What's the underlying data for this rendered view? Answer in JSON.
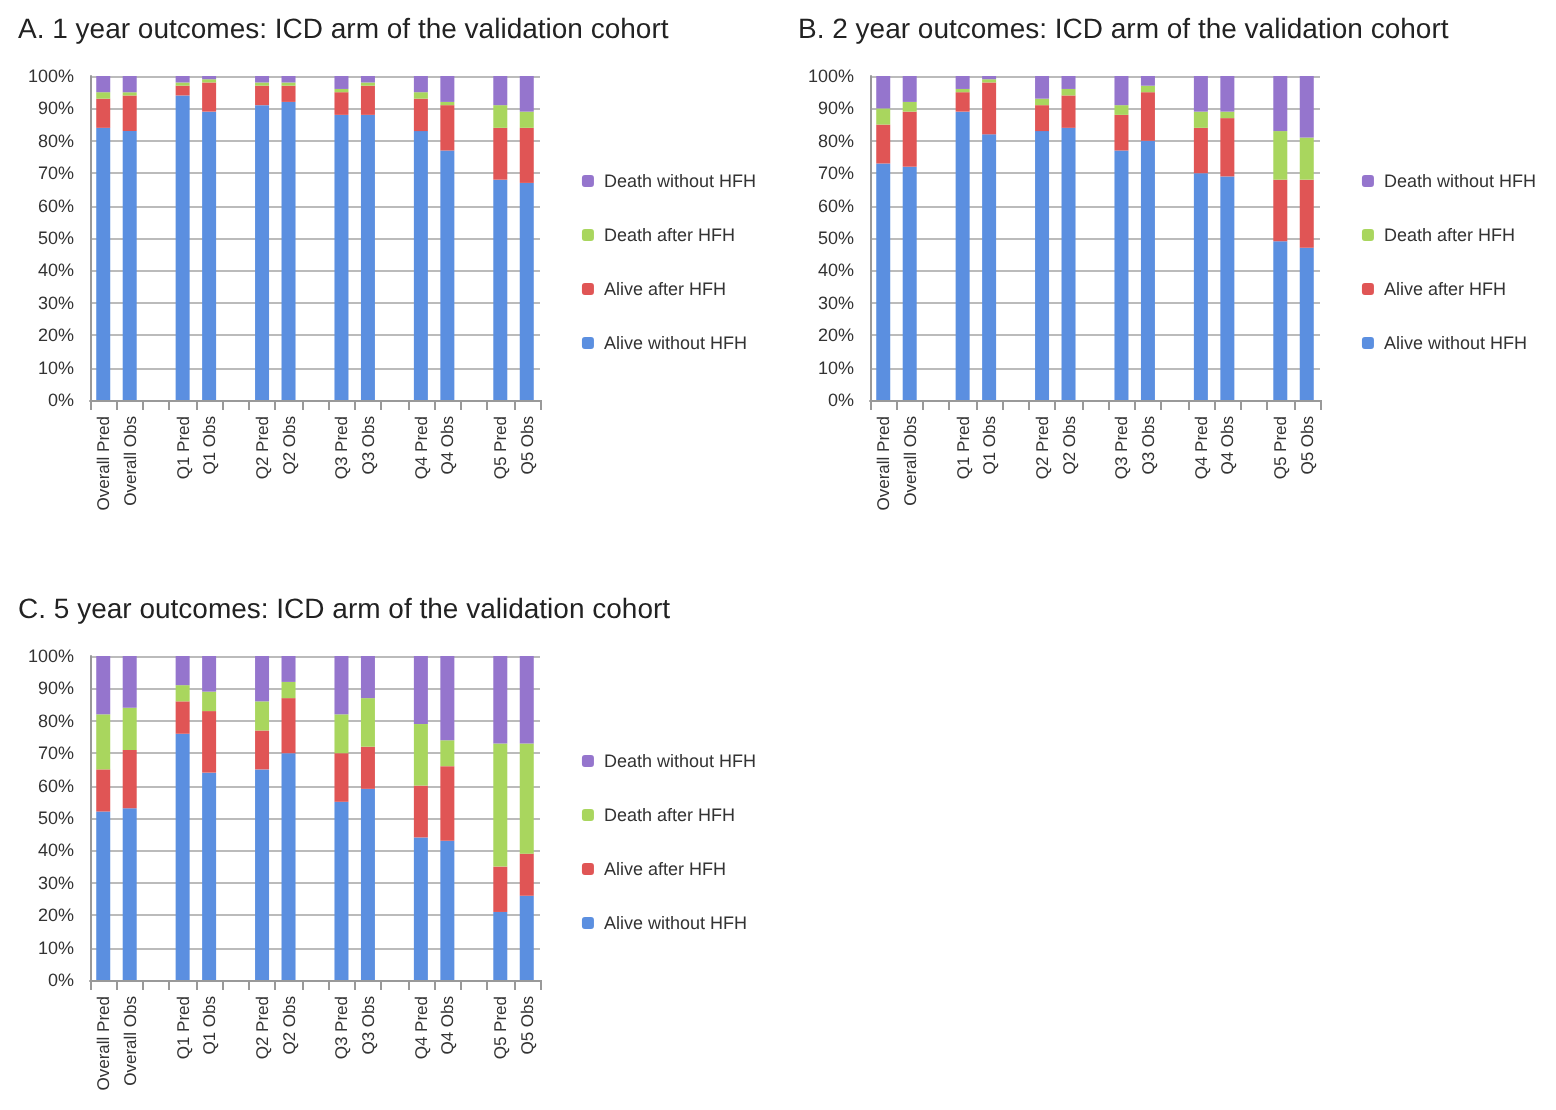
{
  "chart_data": [
    {
      "type": "bar",
      "title": "A. 1 year outcomes: ICD arm of the validation cohort",
      "stacked": true,
      "grid": "y",
      "legend": "right",
      "ylim": [
        0,
        100
      ],
      "yticks": [
        {
          "value": 0,
          "label": "0%"
        },
        {
          "value": 10,
          "label": "10%"
        },
        {
          "value": 20,
          "label": "20%"
        },
        {
          "value": 30,
          "label": "30%"
        },
        {
          "value": 40,
          "label": "40%"
        },
        {
          "value": 50,
          "label": "50%"
        },
        {
          "value": 60,
          "label": "60%"
        },
        {
          "value": 70,
          "label": "70%"
        },
        {
          "value": 80,
          "label": "80%"
        },
        {
          "value": 90,
          "label": "90%"
        },
        {
          "value": 100,
          "label": "100%"
        }
      ],
      "categories": [
        "Overall Pred",
        "Overall Obs",
        null,
        "Q1 Pred",
        "Q1 Obs",
        null,
        "Q2 Pred",
        "Q2 Obs",
        null,
        "Q3 Pred",
        "Q3 Obs",
        null,
        "Q4 Pred",
        "Q4 Obs",
        null,
        "Q5 Pred",
        "Q5 Obs"
      ],
      "series": [
        {
          "name": "Alive without HFH",
          "color": "#5b8fe0",
          "values": [
            84,
            83,
            null,
            94,
            89,
            null,
            91,
            92,
            null,
            88,
            88,
            null,
            83,
            77,
            null,
            68,
            67
          ]
        },
        {
          "name": "Alive after HFH",
          "color": "#e05555",
          "values": [
            9,
            11,
            null,
            3,
            9,
            null,
            6,
            5,
            null,
            7,
            9,
            null,
            10,
            14,
            null,
            16,
            17
          ]
        },
        {
          "name": "Death after HFH",
          "color": "#a9d65e",
          "values": [
            2,
            1,
            null,
            1,
            1,
            null,
            1,
            1,
            null,
            1,
            1,
            null,
            2,
            1,
            null,
            7,
            5
          ]
        },
        {
          "name": "Death without HFH",
          "color": "#9575cd",
          "values": [
            5,
            5,
            null,
            2,
            1,
            null,
            2,
            2,
            null,
            4,
            2,
            null,
            5,
            8,
            null,
            9,
            11
          ]
        }
      ]
    },
    {
      "type": "bar",
      "title": "B. 2 year outcomes: ICD arm of the validation cohort",
      "stacked": true,
      "grid": "y",
      "legend": "right",
      "ylim": [
        0,
        100
      ],
      "yticks": [
        {
          "value": 0,
          "label": "0%"
        },
        {
          "value": 10,
          "label": "10%"
        },
        {
          "value": 20,
          "label": "20%"
        },
        {
          "value": 30,
          "label": "30%"
        },
        {
          "value": 40,
          "label": "40%"
        },
        {
          "value": 50,
          "label": "50%"
        },
        {
          "value": 60,
          "label": "60%"
        },
        {
          "value": 70,
          "label": "70%"
        },
        {
          "value": 80,
          "label": "80%"
        },
        {
          "value": 90,
          "label": "90%"
        },
        {
          "value": 100,
          "label": "100%"
        }
      ],
      "categories": [
        "Overall Pred",
        "Overall Obs",
        null,
        "Q1 Pred",
        "Q1 Obs",
        null,
        "Q2 Pred",
        "Q2 Obs",
        null,
        "Q3 Pred",
        "Q3 Obs",
        null,
        "Q4 Pred",
        "Q4 Obs",
        null,
        "Q5 Pred",
        "Q5 Obs"
      ],
      "series": [
        {
          "name": "Alive without HFH",
          "color": "#5b8fe0",
          "values": [
            73,
            72,
            null,
            89,
            82,
            null,
            83,
            84,
            null,
            77,
            80,
            null,
            70,
            69,
            null,
            49,
            47
          ]
        },
        {
          "name": "Alive after HFH",
          "color": "#e05555",
          "values": [
            12,
            17,
            null,
            6,
            16,
            null,
            8,
            10,
            null,
            11,
            15,
            null,
            14,
            18,
            null,
            19,
            21
          ]
        },
        {
          "name": "Death after HFH",
          "color": "#a9d65e",
          "values": [
            5,
            3,
            null,
            1,
            1,
            null,
            2,
            2,
            null,
            3,
            2,
            null,
            5,
            2,
            null,
            15,
            13
          ]
        },
        {
          "name": "Death without HFH",
          "color": "#9575cd",
          "values": [
            10,
            8,
            null,
            4,
            1,
            null,
            7,
            4,
            null,
            9,
            3,
            null,
            11,
            11,
            null,
            17,
            19
          ]
        }
      ]
    },
    {
      "type": "bar",
      "title": "C. 5 year outcomes: ICD arm of the validation cohort",
      "stacked": true,
      "grid": "y",
      "legend": "right",
      "ylim": [
        0,
        100
      ],
      "yticks": [
        {
          "value": 0,
          "label": "0%"
        },
        {
          "value": 10,
          "label": "10%"
        },
        {
          "value": 20,
          "label": "20%"
        },
        {
          "value": 30,
          "label": "30%"
        },
        {
          "value": 40,
          "label": "40%"
        },
        {
          "value": 50,
          "label": "50%"
        },
        {
          "value": 60,
          "label": "60%"
        },
        {
          "value": 70,
          "label": "70%"
        },
        {
          "value": 80,
          "label": "80%"
        },
        {
          "value": 90,
          "label": "90%"
        },
        {
          "value": 100,
          "label": "100%"
        }
      ],
      "categories": [
        "Overall Pred",
        "Overall Obs",
        null,
        "Q1 Pred",
        "Q1 Obs",
        null,
        "Q2 Pred",
        "Q2 Obs",
        null,
        "Q3 Pred",
        "Q3 Obs",
        null,
        "Q4 Pred",
        "Q4 Obs",
        null,
        "Q5 Pred",
        "Q5 Obs"
      ],
      "series": [
        {
          "name": "Alive without HFH",
          "color": "#5b8fe0",
          "values": [
            52,
            53,
            null,
            76,
            64,
            null,
            65,
            70,
            null,
            55,
            59,
            null,
            44,
            43,
            null,
            21,
            26
          ]
        },
        {
          "name": "Alive after HFH",
          "color": "#e05555",
          "values": [
            13,
            18,
            null,
            10,
            19,
            null,
            12,
            17,
            null,
            15,
            13,
            null,
            16,
            23,
            null,
            14,
            13
          ]
        },
        {
          "name": "Death after HFH",
          "color": "#a9d65e",
          "values": [
            17,
            13,
            null,
            5,
            6,
            null,
            9,
            5,
            null,
            12,
            15,
            null,
            19,
            8,
            null,
            38,
            34
          ]
        },
        {
          "name": "Death without HFH",
          "color": "#9575cd",
          "values": [
            18,
            16,
            null,
            9,
            11,
            null,
            14,
            8,
            null,
            18,
            13,
            null,
            21,
            26,
            null,
            27,
            27
          ]
        }
      ]
    }
  ]
}
